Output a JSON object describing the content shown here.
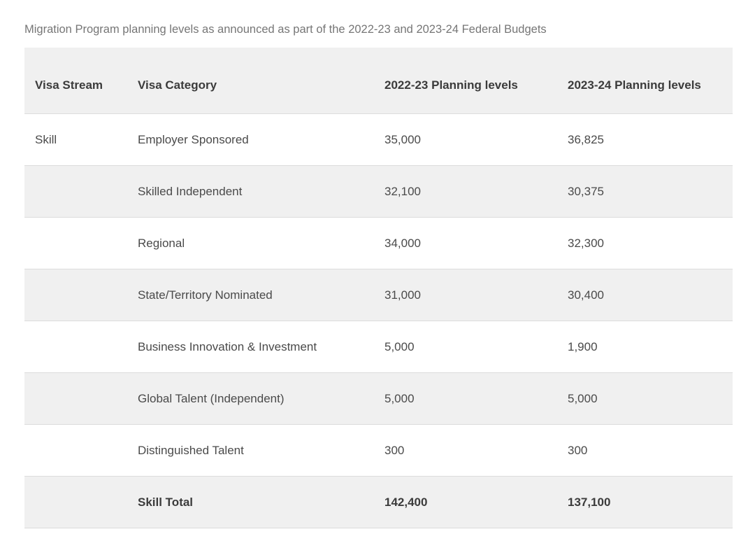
{
  "caption": "Migration Program planning levels as announced as part of the 2022-23 and 2023-24 Federal Budgets",
  "table": {
    "headers": [
      "Visa Stream",
      "Visa Category",
      "2022-23 Planning levels",
      "2023-24 Planning levels"
    ],
    "rows": [
      {
        "cells": [
          "Skill",
          "Employer Sponsored",
          "35,000",
          "36,825"
        ],
        "style": "normal"
      },
      {
        "cells": [
          "",
          "Skilled Independent",
          "32,100",
          "30,375"
        ],
        "style": "alt"
      },
      {
        "cells": [
          "",
          "Regional",
          "34,000",
          "32,300"
        ],
        "style": "normal"
      },
      {
        "cells": [
          "",
          "State/Territory Nominated",
          "31,000",
          "30,400"
        ],
        "style": "alt"
      },
      {
        "cells": [
          "",
          "Business Innovation & Investment",
          "5,000",
          "1,900"
        ],
        "style": "normal"
      },
      {
        "cells": [
          "",
          "Global Talent (Independent)",
          "5,000",
          "5,000"
        ],
        "style": "alt"
      },
      {
        "cells": [
          "",
          "Distinguished Talent",
          "300",
          "300"
        ],
        "style": "normal"
      },
      {
        "cells": [
          "",
          "Skill Total",
          "142,400",
          "137,100"
        ],
        "style": "total"
      }
    ]
  },
  "chart_data": {
    "type": "table",
    "title": "Migration Program planning levels as announced as part of the 2022-23 and 2023-24 Federal Budgets",
    "columns": [
      "Visa Stream",
      "Visa Category",
      "2022-23 Planning levels",
      "2023-24 Planning levels"
    ],
    "rows": [
      [
        "Skill",
        "Employer Sponsored",
        35000,
        36825
      ],
      [
        "",
        "Skilled Independent",
        32100,
        30375
      ],
      [
        "",
        "Regional",
        34000,
        32300
      ],
      [
        "",
        "State/Territory Nominated",
        31000,
        30400
      ],
      [
        "",
        "Business Innovation & Investment",
        5000,
        1900
      ],
      [
        "",
        "Global Talent (Independent)",
        5000,
        5000
      ],
      [
        "",
        "Distinguished Talent",
        300,
        300
      ],
      [
        "",
        "Skill Total",
        142400,
        137100
      ]
    ],
    "layout_hints": {
      "striped_rows": true,
      "total_row_bold": true,
      "header_background": "#f0f0f0"
    }
  },
  "colors": {
    "alt_row_background": "#f0f0f0",
    "row_border": "#dcdcdc",
    "header_text": "#3b3b3b",
    "body_text": "#4a4a4a",
    "caption_text": "#767676",
    "page_background": "#ffffff"
  }
}
